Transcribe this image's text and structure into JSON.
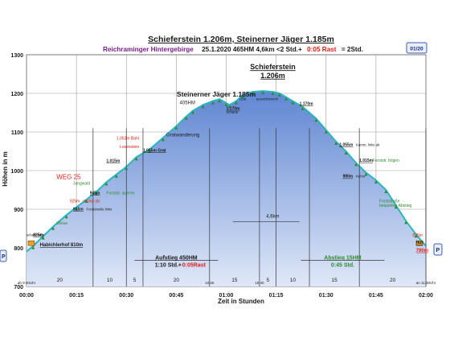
{
  "page": {
    "page_badge": "01/20",
    "nav_prev": "P",
    "nav_next": "P"
  },
  "colors": {
    "plot_bg": "#ffffff",
    "fill_top": "#5f86d2",
    "fill_bottom": "#dfe8f8",
    "outline": "#2bb5bd",
    "header_purple": "#7b1f8a",
    "rest_red": "#e0201a",
    "label_red": "#e0201a",
    "label_orange": "#e0701a",
    "label_green": "#2e8b2e",
    "label_dark": "#1a1a1a",
    "marker_orange": "#f0a020",
    "tree_green": "#2e8b2e"
  },
  "header": {
    "title": "Schieferstein 1.206m, Steinerner Jäger 1.185m",
    "subtitle_region": "Reichraminger Hintergebirge",
    "subtitle_info": "25.1.2020    465HM   4,6km   <2 Std.+",
    "subtitle_rest": "0:05 Rast",
    "subtitle_total": "= 2Std."
  },
  "chart_data": {
    "type": "area",
    "title": "Schieferstein 1.206m, Steinerner Jäger 1.185m",
    "xlabel": "Zeit in Stunden",
    "ylabel": "Höhen in m",
    "xlim": [
      0,
      120
    ],
    "ylim": [
      700,
      1300
    ],
    "x_ticks": [
      0,
      15,
      30,
      45,
      60,
      75,
      90,
      105,
      120
    ],
    "x_tick_labels": [
      "00:00",
      "00:15",
      "00:30",
      "00:45",
      "01:00",
      "01:15",
      "01:30",
      "01:45",
      "02:00"
    ],
    "y_ticks": [
      700,
      800,
      900,
      1000,
      1100,
      1200,
      1300
    ],
    "grid": true,
    "profile": [
      {
        "x": 0,
        "y": 790
      },
      {
        "x": 2,
        "y": 805
      },
      {
        "x": 5,
        "y": 830
      },
      {
        "x": 8,
        "y": 855
      },
      {
        "x": 12,
        "y": 885
      },
      {
        "x": 15,
        "y": 905
      },
      {
        "x": 18,
        "y": 925
      },
      {
        "x": 21,
        "y": 945
      },
      {
        "x": 24,
        "y": 970
      },
      {
        "x": 27,
        "y": 990
      },
      {
        "x": 30,
        "y": 1010
      },
      {
        "x": 33,
        "y": 1035
      },
      {
        "x": 37,
        "y": 1055
      },
      {
        "x": 41,
        "y": 1085
      },
      {
        "x": 45,
        "y": 1115
      },
      {
        "x": 48,
        "y": 1140
      },
      {
        "x": 50,
        "y": 1155
      },
      {
        "x": 53,
        "y": 1170
      },
      {
        "x": 56,
        "y": 1180
      },
      {
        "x": 58,
        "y": 1185
      },
      {
        "x": 60,
        "y": 1175
      },
      {
        "x": 61,
        "y": 1170
      },
      {
        "x": 63,
        "y": 1180
      },
      {
        "x": 65,
        "y": 1196
      },
      {
        "x": 68,
        "y": 1204
      },
      {
        "x": 71,
        "y": 1206
      },
      {
        "x": 74,
        "y": 1204
      },
      {
        "x": 76,
        "y": 1200
      },
      {
        "x": 78,
        "y": 1190
      },
      {
        "x": 80,
        "y": 1180
      },
      {
        "x": 83,
        "y": 1165
      },
      {
        "x": 87,
        "y": 1135
      },
      {
        "x": 90,
        "y": 1105
      },
      {
        "x": 93,
        "y": 1075
      },
      {
        "x": 96,
        "y": 1050
      },
      {
        "x": 99,
        "y": 1020
      },
      {
        "x": 102,
        "y": 995
      },
      {
        "x": 105,
        "y": 975
      },
      {
        "x": 108,
        "y": 950
      },
      {
        "x": 111,
        "y": 910
      },
      {
        "x": 114,
        "y": 870
      },
      {
        "x": 117,
        "y": 835
      },
      {
        "x": 120,
        "y": 805
      }
    ],
    "segment_lines": [
      {
        "x": 20,
        "label": "20",
        "at": 10
      },
      {
        "x": 30,
        "label": "10",
        "at": 25
      },
      {
        "x": 35,
        "label": "5",
        "at": 32.5
      },
      {
        "x": 55,
        "label": "20",
        "at": 45
      },
      {
        "x": 70,
        "label": "15",
        "at": 62.5
      },
      {
        "x": 75,
        "label": "5",
        "at": 72.5
      },
      {
        "x": 85,
        "label": "10",
        "at": 80
      },
      {
        "x": 100,
        "label": "15",
        "at": 92.5
      },
      {
        "x": 120,
        "label": "20",
        "at": 110
      }
    ],
    "segment_time_marks": [
      {
        "x": 0,
        "label": "ab 9:30Uhr"
      },
      {
        "x": 55,
        "label": "10:25"
      },
      {
        "x": 70,
        "label": "10:40"
      },
      {
        "x": 120,
        "label": "an 11:30Uhr"
      }
    ],
    "annotations": [
      {
        "text": "Steinerner Jäger 1.185m",
        "x": 57,
        "y": 1192,
        "style": "bold"
      },
      {
        "text": "405HM",
        "x": 46,
        "y": 1172,
        "style": "small"
      },
      {
        "text": "Schieferstein",
        "x": 74,
        "y": 1262,
        "style": "bold-underline"
      },
      {
        "text": "1.206m",
        "x": 74,
        "y": 1240,
        "style": "bold-underline"
      },
      {
        "text": "Grat",
        "x": 64,
        "y": 1182,
        "style": "tiny"
      },
      {
        "text": "aussichtsreich",
        "x": 69,
        "y": 1182,
        "style": "tiny"
      },
      {
        "text": "1.170m",
        "x": 60,
        "y": 1157,
        "style": "tiny-bold"
      },
      {
        "text": "Scharte",
        "x": 60,
        "y": 1148,
        "style": "tiny"
      },
      {
        "text": "1.170m",
        "x": 82,
        "y": 1170,
        "style": "tiny-bold"
      },
      {
        "text": "Gratwanderung",
        "x": 42,
        "y": 1089,
        "style": "small"
      },
      {
        "text": "1.053m Bahl",
        "x": 27,
        "y": 1080,
        "style": "tiny-red"
      },
      {
        "text": "Losenstein",
        "x": 28,
        "y": 1058,
        "style": "tiny-red"
      },
      {
        "text": "1.055m Grat",
        "x": 35,
        "y": 1049,
        "style": "tiny-bold"
      },
      {
        "text": "1.015m",
        "x": 24,
        "y": 1022,
        "style": "tiny-bold"
      },
      {
        "text": "Jungwald",
        "x": 14,
        "y": 964,
        "style": "tiny-green"
      },
      {
        "text": "945m",
        "x": 19,
        "y": 939,
        "style": "tiny-bold"
      },
      {
        "text": "Forststr. queren",
        "x": 24,
        "y": 939,
        "style": "tiny-green"
      },
      {
        "text": "925m",
        "x": 13,
        "y": 918,
        "style": "tiny-red"
      },
      {
        "text": "rechts ab",
        "x": 17,
        "y": 918,
        "style": "tiny-red"
      },
      {
        "text": "915m",
        "x": 14,
        "y": 897,
        "style": "tiny-bold"
      },
      {
        "text": "Forststraße links",
        "x": 18,
        "y": 897,
        "style": "tiny"
      },
      {
        "text": "WEG 25",
        "x": 9,
        "y": 978,
        "style": "red-large"
      },
      {
        "text": "Wiese",
        "x": 9,
        "y": 860,
        "style": "tiny-green"
      },
      {
        "text": "scharf links",
        "x": 0,
        "y": 830,
        "style": "tiny"
      },
      {
        "text": "825m",
        "x": 2,
        "y": 830,
        "style": "tiny-bold"
      },
      {
        "text": "Habichlerhof 810m",
        "x": 4,
        "y": 804,
        "style": "bold-small"
      },
      {
        "text": "1.055m",
        "x": 94,
        "y": 1064,
        "style": "tiny-bold"
      },
      {
        "text": "Kamm, links ab",
        "x": 99,
        "y": 1064,
        "style": "tiny"
      },
      {
        "text": "1.015m",
        "x": 100,
        "y": 1023,
        "style": "tiny-bold"
      },
      {
        "text": "Forststr. folgen",
        "x": 104,
        "y": 1023,
        "style": "tiny-green"
      },
      {
        "text": "980m",
        "x": 95,
        "y": 982,
        "style": "tiny-bold"
      },
      {
        "text": "Kehre",
        "x": 99,
        "y": 982,
        "style": "tiny"
      },
      {
        "text": "Forststraße",
        "x": 106,
        "y": 918,
        "style": "tiny-green"
      },
      {
        "text": "bequemer Abstieg",
        "x": 106,
        "y": 906,
        "style": "tiny-green"
      },
      {
        "text": "4,6km",
        "x": 72,
        "y": 878,
        "style": "small"
      },
      {
        "text": "825m",
        "x": 116,
        "y": 829,
        "style": "tiny-red"
      },
      {
        "text": "Hof",
        "x": 117,
        "y": 810,
        "style": "tiny-bold"
      },
      {
        "text": "790m",
        "x": 117,
        "y": 790,
        "style": "red-small"
      }
    ],
    "summary_boxes": [
      {
        "line1": "Aufstieg 450HM",
        "line2a": "1:10  Std.+",
        "line2b": "0:05Rast",
        "x": 45,
        "y_top": 776
      },
      {
        "line1": "Abstieg 15HM",
        "line2a": "0:45  Std.",
        "line2b": "",
        "x": 95,
        "y_top": 776
      }
    ]
  }
}
